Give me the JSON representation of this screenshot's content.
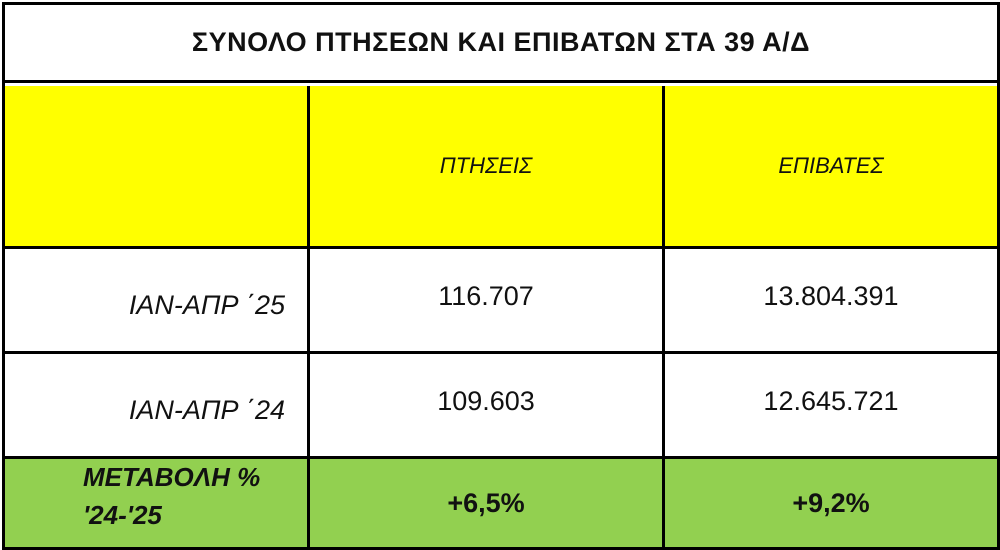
{
  "title": "ΣΥΝΟΛΟ ΠΤΗΣΕΩΝ ΚΑΙ ΕΠΙΒΑΤΩΝ ΣΤΑ 39 Α/Δ",
  "headers": [
    "",
    "ΠΤΗΣΕΙΣ",
    "ΕΠΙΒΑΤΕΣ"
  ],
  "rows": [
    {
      "label": "ΙΑΝ-ΑΠΡ ΄25",
      "flights": "116.707",
      "passengers": "13.804.391"
    },
    {
      "label": "ΙΑΝ-ΑΠΡ ΄24",
      "flights": "109.603",
      "passengers": "12.645.721"
    }
  ],
  "change": {
    "label_line1": "ΜΕΤΑΒΟΛΗ %",
    "label_line2": "'24-'25",
    "flights": "+6,5%",
    "passengers": "+9,2%"
  },
  "colors": {
    "header_bg": "#ffff00",
    "change_bg": "#92d050"
  }
}
